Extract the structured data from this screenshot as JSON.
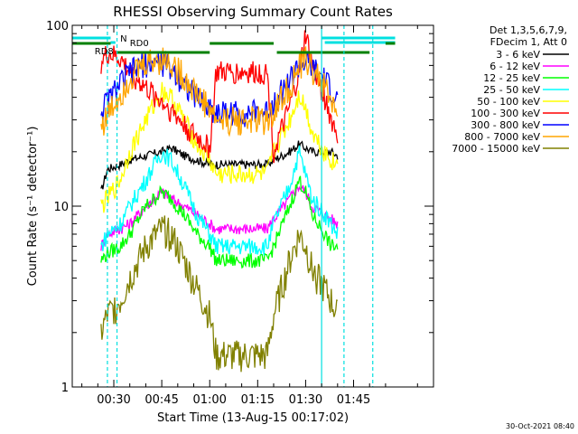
{
  "chart_data": {
    "type": "line",
    "title": "RHESSI Observing Summary Count Rates",
    "xlabel": "Start Time (13-Aug-15 00:17:02)",
    "ylabel": "Count Rate (s⁻¹ detector⁻¹)",
    "yscale": "log",
    "ylim": [
      1,
      100
    ],
    "xlim_minutes": [
      17,
      130
    ],
    "x_ticks": [
      "00:30",
      "00:45",
      "01:00",
      "01:15",
      "01:30",
      "01:45"
    ],
    "x_tick_minutes": [
      30,
      45,
      60,
      75,
      90,
      105
    ],
    "y_ticks": [
      "1",
      "10",
      "100"
    ],
    "y_tick_values": [
      1,
      10,
      100
    ],
    "legend_header": [
      "Det 1,3,5,6,7,9,",
      "FDecim 1, Att 0"
    ],
    "legend_position": "right",
    "series": [
      {
        "name": "3 - 6 keV",
        "color": "#000000",
        "t": [
          26,
          28,
          32,
          35,
          40,
          45,
          48,
          52,
          56,
          60,
          62,
          67,
          72,
          75,
          78,
          80,
          85,
          88,
          90,
          92,
          96,
          98,
          100
        ],
        "values": [
          12,
          16,
          17,
          18,
          19,
          20,
          21,
          19,
          18,
          17,
          17,
          17,
          17,
          17,
          17,
          18,
          20,
          22,
          21,
          20,
          20,
          20,
          19
        ]
      },
      {
        "name": "6 - 12 keV",
        "color": "#ff00ff",
        "t": [
          26,
          28,
          32,
          35,
          40,
          45,
          48,
          52,
          56,
          60,
          62,
          67,
          72,
          75,
          78,
          80,
          85,
          88,
          90,
          92,
          96,
          98,
          100
        ],
        "values": [
          6,
          7,
          7.5,
          8,
          10,
          12,
          11,
          10,
          9,
          8,
          7.5,
          7.5,
          7.5,
          7.5,
          7.5,
          8.5,
          11,
          13,
          12,
          10,
          9,
          8.5,
          8
        ]
      },
      {
        "name": "12 - 25 keV",
        "color": "#00ff00",
        "t": [
          26,
          28,
          32,
          35,
          40,
          45,
          48,
          52,
          56,
          60,
          62,
          67,
          72,
          75,
          78,
          80,
          85,
          88,
          90,
          92,
          96,
          98,
          100
        ],
        "values": [
          5,
          5.5,
          6,
          7,
          10,
          12,
          11,
          9,
          7,
          6,
          5,
          5,
          5,
          5,
          5,
          6,
          10,
          14,
          12,
          9,
          7,
          6,
          6
        ]
      },
      {
        "name": "25 - 50 keV",
        "color": "#00ffff",
        "t": [
          26,
          28,
          32,
          35,
          40,
          45,
          48,
          52,
          56,
          60,
          62,
          67,
          72,
          75,
          78,
          80,
          85,
          88,
          90,
          92,
          96,
          98,
          100
        ],
        "values": [
          6,
          7,
          8,
          10,
          14,
          20,
          18,
          13,
          9,
          7,
          6,
          6,
          6,
          6,
          6,
          8,
          13,
          20,
          15,
          11,
          9,
          8,
          7
        ]
      },
      {
        "name": "50 - 100 keV",
        "color": "#ffff00",
        "t": [
          26,
          28,
          32,
          35,
          40,
          45,
          48,
          52,
          56,
          60,
          62,
          67,
          72,
          75,
          78,
          80,
          85,
          88,
          90,
          92,
          96,
          98,
          100
        ],
        "values": [
          10,
          11,
          14,
          20,
          30,
          44,
          40,
          30,
          22,
          18,
          15,
          15,
          15,
          15,
          15,
          20,
          30,
          42,
          35,
          26,
          20,
          18,
          17
        ]
      },
      {
        "name": "100 - 300 keV",
        "color": "#ff0000",
        "t": [
          26,
          28,
          32,
          35,
          40,
          45,
          48,
          52,
          56,
          60,
          62,
          67,
          72,
          75,
          78,
          80,
          85,
          88,
          90,
          92,
          96,
          98,
          100
        ],
        "values": [
          62,
          70,
          65,
          55,
          45,
          38,
          34,
          28,
          24,
          21,
          55,
          55,
          55,
          55,
          55,
          20,
          35,
          55,
          90,
          60,
          40,
          30,
          25
        ]
      },
      {
        "name": "300 - 800 keV",
        "color": "#0000ff",
        "t": [
          26,
          28,
          32,
          35,
          40,
          45,
          48,
          52,
          56,
          60,
          62,
          67,
          72,
          75,
          78,
          80,
          85,
          88,
          90,
          92,
          96,
          98,
          100
        ],
        "values": [
          34,
          38,
          48,
          55,
          62,
          62,
          58,
          48,
          40,
          35,
          33,
          33,
          33,
          33,
          33,
          38,
          50,
          60,
          62,
          58,
          50,
          44,
          38
        ]
      },
      {
        "name": "800 - 7000 keV",
        "color": "#ffa500",
        "t": [
          26,
          28,
          32,
          35,
          40,
          45,
          48,
          52,
          56,
          60,
          62,
          67,
          72,
          75,
          78,
          80,
          85,
          88,
          90,
          92,
          96,
          98,
          100
        ],
        "values": [
          28,
          32,
          42,
          52,
          62,
          66,
          62,
          52,
          42,
          35,
          30,
          30,
          30,
          30,
          30,
          34,
          46,
          58,
          66,
          58,
          46,
          38,
          33
        ]
      },
      {
        "name": "7000 - 15000 keV",
        "color": "#808000",
        "t": [
          26,
          28,
          32,
          35,
          40,
          45,
          48,
          52,
          56,
          60,
          62,
          67,
          72,
          75,
          78,
          80,
          85,
          88,
          90,
          92,
          96,
          98,
          100
        ],
        "values": [
          2,
          2.5,
          3,
          4,
          6,
          7.5,
          7,
          5,
          3.5,
          2.5,
          1.5,
          1.5,
          1.5,
          1.5,
          1.5,
          2.5,
          5,
          7,
          6,
          4.5,
          3.5,
          3,
          2.5
        ]
      }
    ],
    "flags": [
      {
        "label": "N",
        "color": "#00e0e0"
      },
      {
        "label": "RD0",
        "color": "#008000"
      },
      {
        "label": "RD8",
        "color": "#008000"
      }
    ],
    "timestamp": "30-Oct-2021 08:40"
  }
}
